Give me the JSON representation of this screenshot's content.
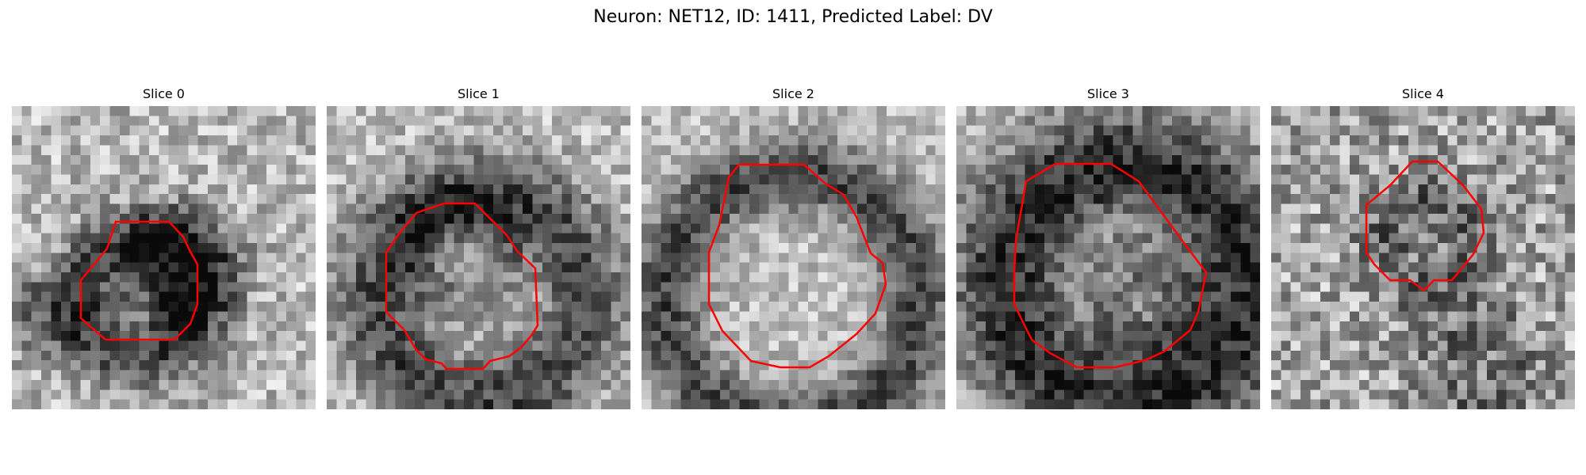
{
  "figure": {
    "title": "Neuron: NET12, ID: 1411, Predicted Label: DV",
    "contour_color": "#ff0000",
    "colormap": "gray",
    "panels": [
      {
        "label": "Slice 0"
      },
      {
        "label": "Slice 1"
      },
      {
        "label": "Slice 2"
      },
      {
        "label": "Slice 3"
      },
      {
        "label": "Slice 4"
      }
    ]
  }
}
